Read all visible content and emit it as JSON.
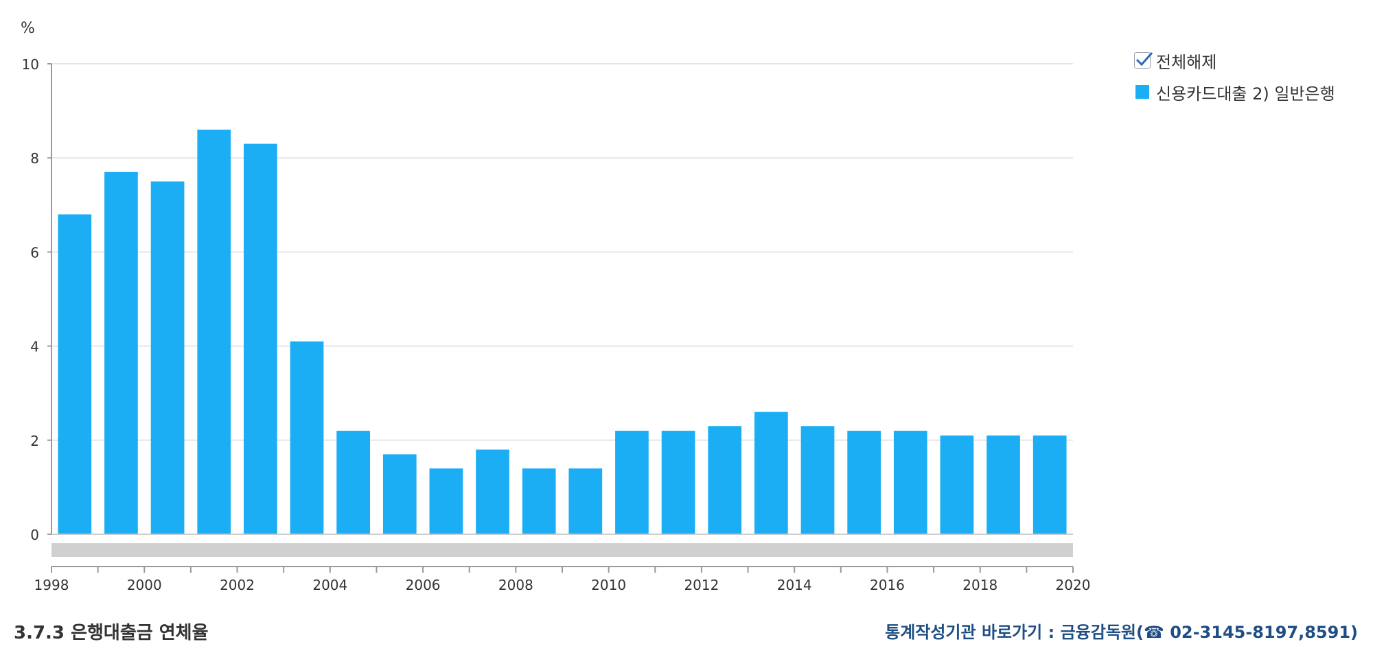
{
  "chart_data": {
    "type": "bar",
    "ylabel": "%",
    "ylim": [
      0,
      10
    ],
    "yticks": [
      0,
      2,
      4,
      6,
      8,
      10
    ],
    "xlim": [
      1998,
      2020
    ],
    "xticks": [
      1998,
      2000,
      2002,
      2004,
      2006,
      2008,
      2010,
      2012,
      2014,
      2016,
      2018,
      2020
    ],
    "grid": true,
    "legend_position": "top-right",
    "color": "#1baef5",
    "series": [
      {
        "name": "신용카드대출 2) 일반은행",
        "x": [
          1999,
          2000,
          2001,
          2002,
          2003,
          2004,
          2005,
          2006,
          2007,
          2008,
          2009,
          2010,
          2011,
          2012,
          2013,
          2014,
          2015,
          2016,
          2017,
          2018,
          2019,
          2020
        ],
        "values": [
          6.8,
          7.7,
          7.5,
          8.6,
          8.3,
          4.1,
          2.2,
          1.7,
          1.4,
          1.8,
          1.4,
          1.4,
          2.2,
          2.2,
          2.3,
          2.6,
          2.3,
          2.2,
          2.2,
          2.1,
          2.1,
          2.1
        ]
      }
    ]
  },
  "legend": {
    "toggle_all_label": "전체해제",
    "series_label": "신용카드대출 2) 일반은행",
    "series_color": "#1baef5"
  },
  "footer": {
    "title": "3.7.3 은행대출금 연체율",
    "source_link": "통계작성기관 바로가기 : 금융감독원(☎ 02-3145-8197,8591)"
  }
}
